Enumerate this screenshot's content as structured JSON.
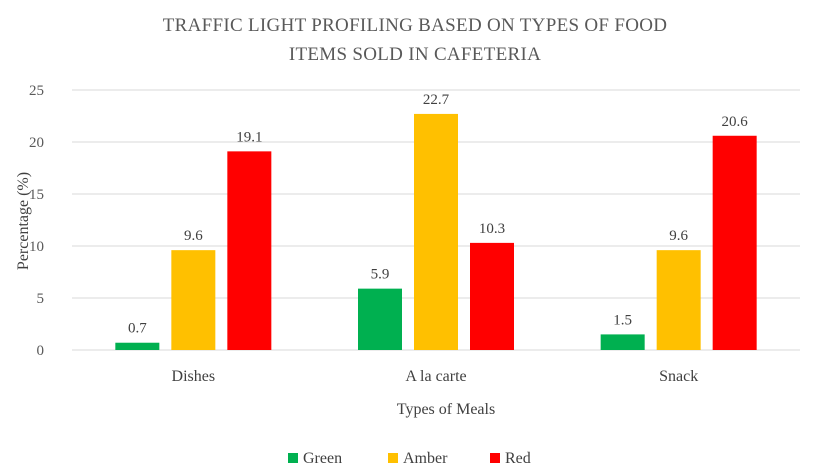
{
  "chart_data": {
    "type": "bar",
    "title_lines": [
      "TRAFFIC LIGHT PROFILING BASED ON TYPES OF FOOD",
      "ITEMS SOLD IN CAFETERIA"
    ],
    "xlabel": "Types of Meals",
    "ylabel": "Percentage (%)",
    "ylim": [
      0,
      25
    ],
    "yticks": [
      0,
      5,
      10,
      15,
      20,
      25
    ],
    "grid": true,
    "legend_position": "bottom",
    "categories": [
      "Dishes",
      "A la carte",
      "Snack"
    ],
    "series": [
      {
        "name": "Green",
        "color": "#00b050",
        "values": [
          0.7,
          5.9,
          1.5
        ]
      },
      {
        "name": "Amber",
        "color": "#ffc000",
        "values": [
          9.6,
          22.7,
          9.6
        ]
      },
      {
        "name": "Red",
        "color": "#ff0000",
        "values": [
          19.1,
          10.3,
          20.6
        ]
      }
    ]
  }
}
